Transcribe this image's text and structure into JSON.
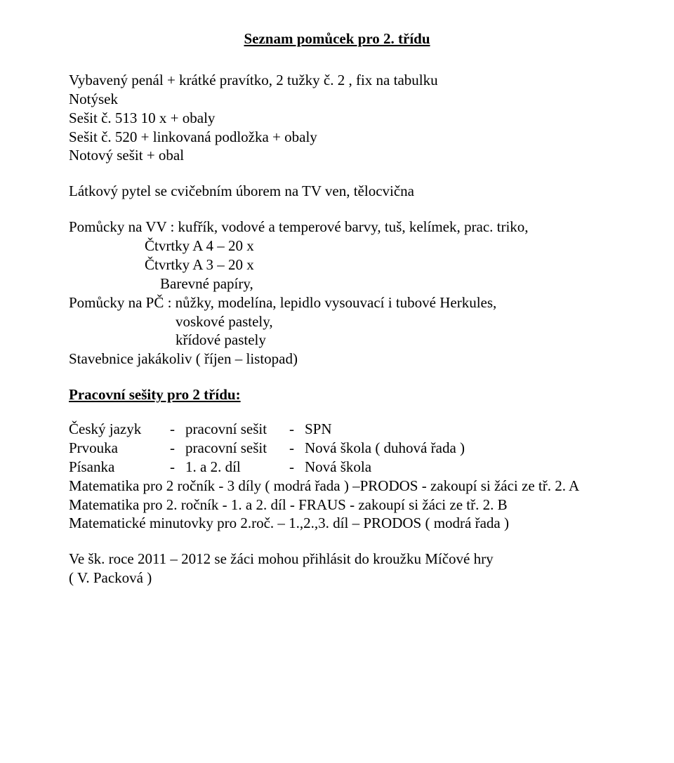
{
  "title": "Seznam pomůcek pro 2. třídu",
  "supplies": {
    "l1": "Vybavený penál + krátké pravítko, 2 tužky č. 2 , fix na tabulku",
    "l2": "Notýsek",
    "l3": "Sešit č. 513  10 x + obaly",
    "l4": "Sešit č. 520  + linkovaná podložka + obaly",
    "l5": "Notový sešit + obal"
  },
  "p_latkovy": "Látkový pytel se cvičebním úborem na TV  ven, tělocvična",
  "pom_vv": {
    "l1": "Pomůcky na VV : kufřík, vodové a temperové barvy, tuš, kelímek, prac. triko,",
    "l2": "Čtvrtky A 4 – 20 x",
    "l3": "Čtvrtky A 3 – 20 x",
    "l4": "Barevné papíry,"
  },
  "pom_pc": {
    "l1": "Pomůcky na PČ : nůžky, modelína, lepidlo vysouvací i tubové Herkules,",
    "l2": "voskové pastely,",
    "l3": "křídové pastely"
  },
  "stavebnice": "Stavebnice jakákoliv ( říjen – listopad)",
  "sub_workbooks": "Pracovní sešity pro 2 třídu:",
  "wb": {
    "dash": "-",
    "r1": {
      "subject": "Český jazyk",
      "kind": "pracovní sešit",
      "src": "SPN"
    },
    "r2": {
      "subject": "Prvouka",
      "kind": "pracovní sešit",
      "src": "Nová škola   ( duhová řada )"
    },
    "r3": {
      "subject": "Písanka",
      "kind": "1. a 2. díl",
      "src": "Nová škola"
    }
  },
  "math": {
    "l1": "Matematika  pro 2 ročník   -  3 díly ( modrá řada ) –PRODOS   -   zakoupí si žáci ze tř. 2. A",
    "l2": "Matematika  pro 2. ročník -   1. a 2. díl   -  FRAUS  -  zakoupí si žáci ze tř. 2. B",
    "l3": "Matematické minutovky pro 2.roč. – 1.,2.,3. díl – PRODOS ( modrá řada )"
  },
  "footer": {
    "l1": "Ve šk. roce 2011 – 2012 se  žáci mohou přihlásit do kroužku Míčové hry",
    "l2": "( V. Packová )"
  }
}
